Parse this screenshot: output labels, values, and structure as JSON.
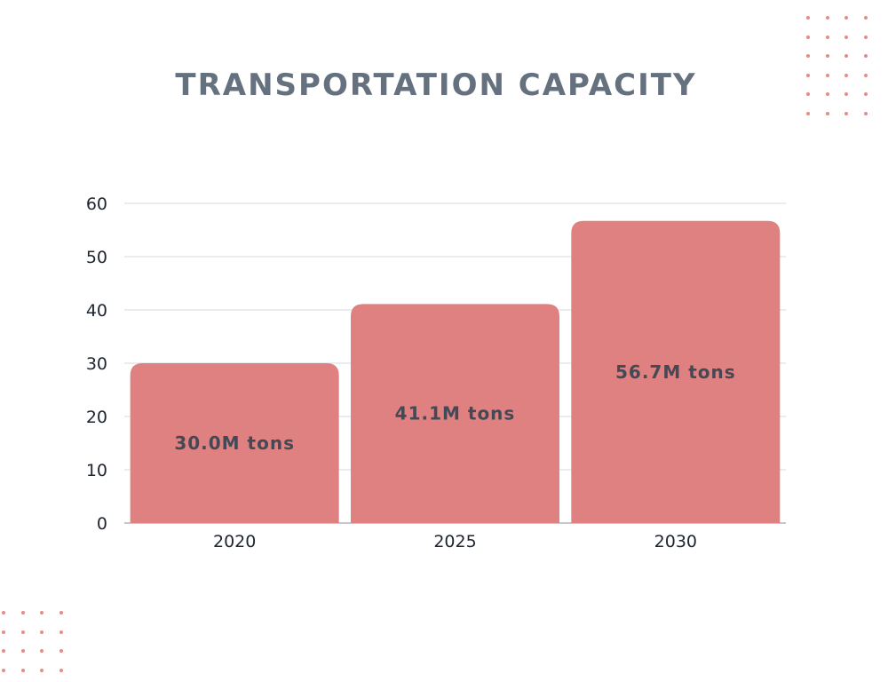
{
  "colors": {
    "bar": "#de8180",
    "title": "#667180",
    "label_text": "#454955",
    "tick_text": "#1d2530",
    "grid": "#d5d8dd",
    "axis": "#8a8f99",
    "dots": "#e98b83"
  },
  "decorations": {
    "top_right_dots": "dot-grid",
    "bottom_left_dots": "dot-grid"
  },
  "chart_data": {
    "type": "bar",
    "title": "TRANSPORTATION CAPACITY",
    "categories": [
      "2020",
      "2025",
      "2030"
    ],
    "values": [
      30.0,
      41.1,
      56.7
    ],
    "data_labels": [
      "30.0M tons",
      "41.1M tons",
      "56.7M tons"
    ],
    "yticks": [
      "0",
      "10",
      "20",
      "30",
      "40",
      "50",
      "60"
    ],
    "ylim": [
      0,
      60
    ],
    "xlabel": "",
    "ylabel": "",
    "grid": true,
    "legend": "none"
  }
}
